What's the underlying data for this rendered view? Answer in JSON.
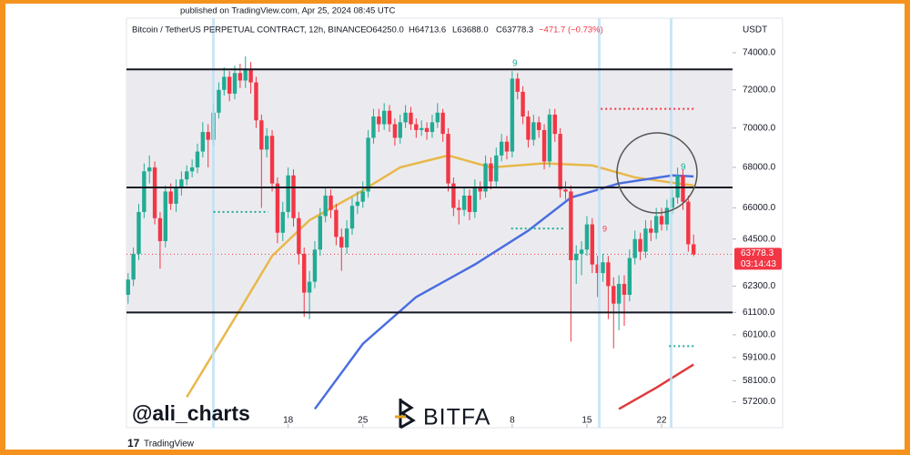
{
  "header": {
    "published": "published on TradingView.com, Apr 25, 2024 08:45 UTC",
    "symbol": "Bitcoin / TetherUS PERPETUAL CONTRACT, 12h, BINANCE",
    "open": "O64250.0",
    "high": "H64713.6",
    "low": "L63688.0",
    "close": "C63778.3",
    "change": "−471.7 (−0.73%)"
  },
  "footer": {
    "brand": "TradingView"
  },
  "watermarks": {
    "author": "@ali_charts",
    "logo": "BITFA"
  },
  "markers": [
    "9",
    "9",
    "9"
  ],
  "chart_data": {
    "type": "candlestick",
    "currency": "USDT",
    "log_scale": true,
    "up_color": "#22ab94",
    "down_color": "#f23645",
    "level_color": "#131722",
    "xlim": [
      -0.3,
      113.3
    ],
    "ylim": [
      56120,
      75910
    ],
    "xticks": [
      {
        "value": 30,
        "label": "18"
      },
      {
        "value": 44,
        "label": "25"
      },
      {
        "value": 72,
        "label": "8"
      },
      {
        "value": 86,
        "label": "15"
      },
      {
        "value": 100,
        "label": "22"
      }
    ],
    "yticks": [
      {
        "value": 74000,
        "label": "74000.0"
      },
      {
        "value": 72000,
        "label": "72000.0"
      },
      {
        "value": 70000,
        "label": "70000.0"
      },
      {
        "value": 68000,
        "label": "68000.0"
      },
      {
        "value": 66000,
        "label": "66000.0"
      },
      {
        "value": 64500,
        "label": "64500.0"
      },
      {
        "value": 62300,
        "label": "62300.0"
      },
      {
        "value": 61100,
        "label": "61100.0"
      },
      {
        "value": 60100,
        "label": "60100.0"
      },
      {
        "value": 59100,
        "label": "59100.0"
      },
      {
        "value": 58100,
        "label": "58100.0"
      },
      {
        "value": 57200,
        "label": "57200.0"
      }
    ],
    "open": [
      61900,
      62600,
      63800,
      65800,
      67800,
      68000,
      65500,
      64400,
      66800,
      66200,
      67000,
      67400,
      67800,
      68000,
      68800,
      69800,
      69400,
      70800,
      72000,
      72700,
      71800,
      72900,
      72500,
      73100,
      72400,
      70400,
      68900,
      69600,
      67200,
      64800,
      65800,
      67600,
      65500,
      63800,
      62000,
      62500,
      64000,
      65600,
      66600,
      65900,
      64600,
      64100,
      65000,
      66100,
      66300,
      66800,
      69500,
      70600,
      70200,
      70900,
      70200,
      69500,
      70300,
      70800,
      70200,
      69900,
      70000,
      69800,
      70300,
      70800,
      69700,
      67200,
      66000,
      65900,
      66600,
      65800,
      67000,
      66800,
      68200,
      67300,
      68600,
      69300,
      68800,
      72600,
      71900,
      70600,
      69400,
      70300,
      69900,
      68300,
      70700,
      69700,
      66900,
      66800,
      63500,
      63800,
      64000,
      65200,
      63300,
      62900,
      63400,
      62300,
      61500,
      62400,
      61900,
      63600,
      64500,
      63900,
      65000,
      64800,
      65600,
      65200,
      66000,
      66500,
      67600,
      66300,
      64250
    ],
    "high": [
      62900,
      64100,
      66200,
      68200,
      68600,
      68300,
      65800,
      67100,
      67200,
      67400,
      67800,
      68100,
      68400,
      69200,
      70300,
      70200,
      71300,
      72400,
      73200,
      73000,
      73300,
      73400,
      73800,
      73500,
      72700,
      70700,
      70000,
      69900,
      67500,
      66300,
      68000,
      67900,
      65800,
      64100,
      63000,
      64400,
      66000,
      67000,
      66900,
      66200,
      65000,
      65400,
      66500,
      66800,
      67300,
      69900,
      71000,
      71000,
      71300,
      71200,
      70500,
      70700,
      71200,
      71100,
      70500,
      70400,
      70300,
      70700,
      71300,
      71000,
      70000,
      67500,
      66400,
      67000,
      66900,
      67400,
      67300,
      68600,
      68500,
      69000,
      69700,
      69600,
      73000,
      72900,
      72200,
      70900,
      70700,
      70600,
      70200,
      71000,
      71000,
      70000,
      67300,
      67100,
      64200,
      64400,
      65600,
      65500,
      63700,
      63800,
      63700,
      62700,
      62800,
      62800,
      64000,
      64900,
      64800,
      65400,
      65400,
      66000,
      66000,
      66400,
      66900,
      68000,
      67900,
      66600,
      64713.6
    ],
    "low": [
      61500,
      62300,
      63500,
      65500,
      67200,
      65200,
      63100,
      64100,
      65900,
      65800,
      66600,
      67100,
      67500,
      67700,
      68500,
      68000,
      69100,
      70500,
      71700,
      71400,
      71500,
      72100,
      72100,
      71800,
      70000,
      66000,
      68500,
      66800,
      64300,
      64400,
      65500,
      65100,
      63300,
      60900,
      60800,
      62200,
      63700,
      65300,
      65500,
      64200,
      63000,
      63800,
      64700,
      65700,
      66000,
      66500,
      69200,
      69800,
      69900,
      69800,
      69100,
      69200,
      70000,
      69900,
      69500,
      69600,
      69400,
      69500,
      70000,
      69300,
      66800,
      65600,
      65200,
      65600,
      65400,
      65500,
      66400,
      66500,
      66900,
      67000,
      68300,
      68400,
      68500,
      71500,
      70200,
      69000,
      69100,
      69500,
      67900,
      68000,
      69300,
      66500,
      66400,
      59800,
      62400,
      62800,
      63700,
      62900,
      61800,
      62500,
      60800,
      59500,
      60300,
      60500,
      61600,
      63300,
      63500,
      63600,
      64400,
      64500,
      64900,
      64900,
      65700,
      66200,
      65900,
      63900,
      63688
    ],
    "close": [
      62600,
      63800,
      65800,
      67800,
      68000,
      65500,
      64400,
      66800,
      66200,
      67000,
      67400,
      67800,
      68000,
      68800,
      69800,
      69400,
      70800,
      72000,
      72700,
      71800,
      72900,
      72500,
      73100,
      72400,
      70400,
      68900,
      69600,
      67200,
      64800,
      65800,
      67600,
      65500,
      63800,
      62000,
      62500,
      64000,
      65600,
      66600,
      65900,
      64600,
      64100,
      65000,
      66100,
      66300,
      66800,
      69500,
      70600,
      70200,
      70900,
      70200,
      69500,
      70300,
      70800,
      70200,
      69900,
      70000,
      69800,
      70300,
      70800,
      69700,
      67200,
      66000,
      65900,
      66600,
      65800,
      67000,
      66800,
      68200,
      67300,
      68600,
      69300,
      68800,
      72600,
      71900,
      70600,
      69400,
      70300,
      69900,
      68300,
      70700,
      69700,
      66900,
      66800,
      63500,
      63800,
      64000,
      65200,
      63300,
      62900,
      63400,
      62300,
      61500,
      62400,
      61900,
      63600,
      64500,
      63900,
      65000,
      64800,
      65600,
      65200,
      66000,
      66500,
      67600,
      66300,
      64250,
      63778.3
    ],
    "last_price": 63778.3,
    "countdown": "03:14:43",
    "levels": [
      73100,
      67000,
      61100
    ],
    "lines": [
      {
        "color": "#e8b84a",
        "x": [
          11,
          21,
          27,
          34,
          43,
          51,
          60,
          68,
          78,
          87,
          95,
          103,
          106
        ],
        "values": [
          57400,
          61240,
          63700,
          65400,
          66700,
          68000,
          68600,
          68000,
          68200,
          68100,
          67500,
          67200,
          67100
        ]
      },
      {
        "color": "#4a6ee0",
        "x": [
          35,
          44,
          54,
          65,
          75,
          83,
          92,
          102,
          106
        ],
        "values": [
          56900,
          59700,
          61800,
          63300,
          64900,
          66500,
          67200,
          67600,
          67550
        ]
      },
      {
        "color": "#e03a3e",
        "x": [
          92,
          99,
          106
        ],
        "values": [
          56900,
          57800,
          58800
        ]
      }
    ],
    "dotted_levels": [
      {
        "color": "#f23645",
        "value": 71000,
        "x": [
          88.6,
          106.5
        ]
      },
      {
        "color": "#22ab94",
        "value": 65800,
        "x": [
          16,
          26.3
        ]
      },
      {
        "color": "#22ab94",
        "value": 65000,
        "x": [
          71.8,
          81.7
        ]
      },
      {
        "color": "#22ab94",
        "value": 59600,
        "x": [
          101.4,
          106.5
        ]
      }
    ]
  }
}
